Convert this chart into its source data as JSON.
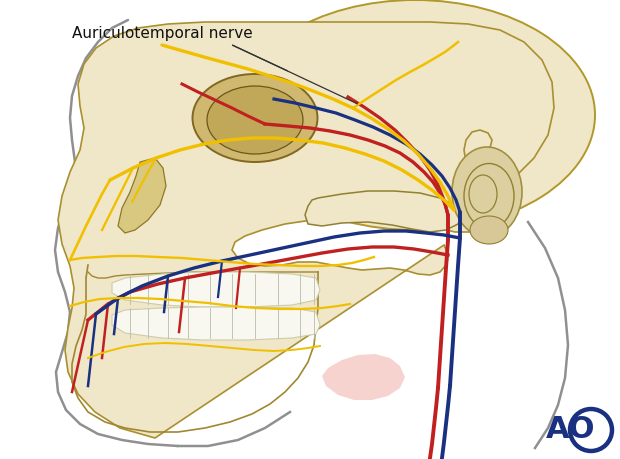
{
  "bg_color": "#ffffff",
  "title": "Auriculotemporal nerve",
  "title_fontsize": 11,
  "skull_fill": "#f0e6c8",
  "skull_stroke": "#b8a860",
  "nerve_color": "#f0c000",
  "artery_color": "#c02020",
  "vein_color": "#1a3080",
  "skin_color": "#e8d5b0",
  "ear_color": "#e0cfa0",
  "ao_color": "#1a3080",
  "ao_fontsize": 22,
  "lw_vessel": 2.8,
  "lw_nerve": 2.4,
  "lw_bone": 1.3,
  "lw_face": 1.8
}
